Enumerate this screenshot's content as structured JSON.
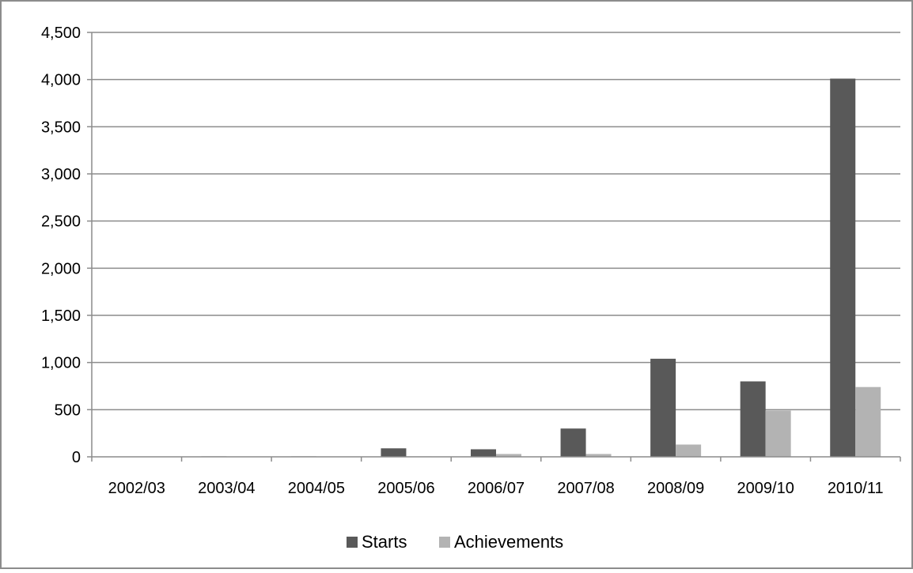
{
  "chart_data": {
    "type": "bar",
    "title": "",
    "xlabel": "",
    "ylabel": "",
    "categories": [
      "2002/03",
      "2003/04",
      "2004/05",
      "2005/06",
      "2006/07",
      "2007/08",
      "2008/09",
      "2009/10",
      "2010/11"
    ],
    "series": [
      {
        "name": "Starts",
        "color": "#595959",
        "values": [
          0,
          5,
          5,
          90,
          80,
          300,
          1040,
          800,
          4010
        ]
      },
      {
        "name": "Achievements",
        "color": "#b3b3b3",
        "values": [
          0,
          0,
          0,
          5,
          30,
          30,
          130,
          490,
          740
        ]
      }
    ],
    "ylim": [
      0,
      4500
    ],
    "yticks": [
      0,
      500,
      1000,
      1500,
      2000,
      2500,
      3000,
      3500,
      4000,
      4500
    ],
    "ytick_labels": [
      "0",
      "500",
      "1,000",
      "1,500",
      "2,000",
      "2,500",
      "3,000",
      "3,500",
      "4,000",
      "4,500"
    ],
    "grid": true,
    "legend_position": "bottom"
  }
}
